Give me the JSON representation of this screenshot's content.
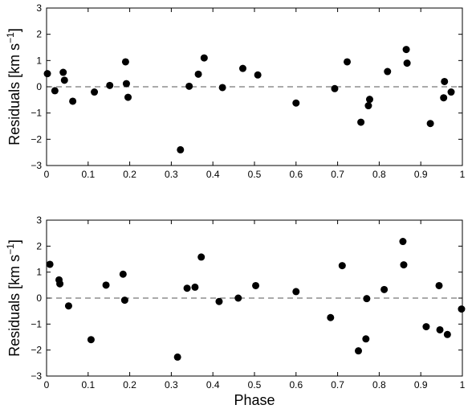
{
  "chart_data": [
    {
      "type": "scatter",
      "xlabel": "",
      "ylabel": "Residuals [km s",
      "ylabel_sup": "−1",
      "ylabel_close": "]",
      "xlim": [
        0,
        1
      ],
      "ylim": [
        -3,
        3
      ],
      "xticks": [
        "0",
        "0.1",
        "0.2",
        "0.3",
        "0.4",
        "0.5",
        "0.6",
        "0.7",
        "0.8",
        "0.9",
        "1"
      ],
      "yticks": [
        "−3",
        "−2",
        "−1",
        "0",
        "1",
        "2",
        "3"
      ],
      "grid": false,
      "reference_line": {
        "y": 0,
        "style": "dashed"
      },
      "series": [
        {
          "x": [
            0.002,
            0.02,
            0.04,
            0.043,
            0.063,
            0.115,
            0.152,
            0.19,
            0.192,
            0.196,
            0.322,
            0.343,
            0.365,
            0.379,
            0.423,
            0.472,
            0.508,
            0.6,
            0.693,
            0.723,
            0.756,
            0.774,
            0.777,
            0.82,
            0.865,
            0.867,
            0.923,
            0.955,
            0.957,
            0.973
          ],
          "y": [
            0.5,
            -0.15,
            0.55,
            0.25,
            -0.55,
            -0.2,
            0.05,
            0.95,
            0.12,
            -0.4,
            -2.4,
            0.02,
            0.48,
            1.1,
            -0.03,
            0.7,
            0.45,
            -0.62,
            -0.07,
            0.95,
            -1.35,
            -0.72,
            -0.48,
            0.58,
            1.42,
            0.9,
            -1.4,
            -0.42,
            0.2,
            -0.2
          ]
        }
      ]
    },
    {
      "type": "scatter",
      "xlabel": "Phase",
      "ylabel": "Residuals [km s",
      "ylabel_sup": "−1",
      "ylabel_close": "]",
      "xlim": [
        0,
        1
      ],
      "ylim": [
        -3,
        3
      ],
      "xticks": [
        "0",
        "0.1",
        "0.2",
        "0.3",
        "0.4",
        "0.5",
        "0.6",
        "0.7",
        "0.8",
        "0.9",
        "1"
      ],
      "yticks": [
        "−3",
        "−2",
        "−1",
        "0",
        "1",
        "2",
        "3"
      ],
      "grid": false,
      "reference_line": {
        "y": 0,
        "style": "dashed"
      },
      "series": [
        {
          "x": [
            0.008,
            0.03,
            0.032,
            0.053,
            0.107,
            0.143,
            0.184,
            0.188,
            0.315,
            0.338,
            0.357,
            0.372,
            0.415,
            0.461,
            0.503,
            0.6,
            0.683,
            0.711,
            0.75,
            0.768,
            0.77,
            0.812,
            0.857,
            0.859,
            0.913,
            0.944,
            0.946,
            0.964,
            0.998
          ],
          "y": [
            1.3,
            0.7,
            0.55,
            -0.3,
            -1.6,
            0.5,
            0.92,
            -0.08,
            -2.27,
            0.38,
            0.42,
            1.58,
            -0.13,
            0.0,
            0.48,
            0.25,
            -0.75,
            1.25,
            -2.03,
            -1.57,
            -0.02,
            0.33,
            2.18,
            1.28,
            -1.1,
            0.48,
            -1.22,
            -1.4,
            -0.42
          ]
        }
      ]
    }
  ]
}
